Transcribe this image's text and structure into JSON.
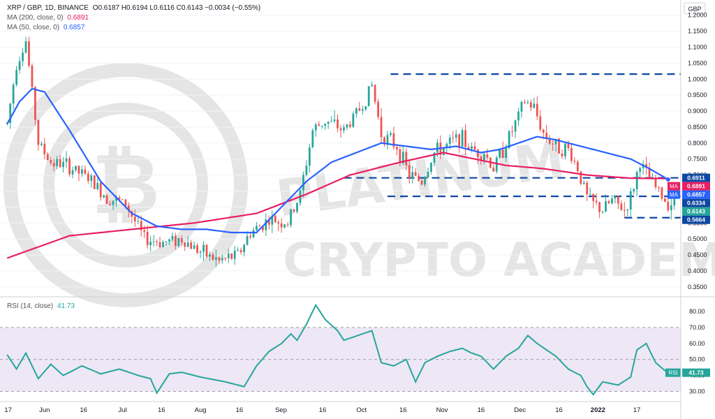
{
  "header": {
    "symbol": "XRP / GBP, 1D, BINANCE",
    "ohlc": "O0.6187 H0.6194 L0.6116 C0.6143 −0.0034 (−0.55%)",
    "ma200_label": "MA (200, close, 0)",
    "ma200_value": "0.6891",
    "ma50_label": "MA (50, close, 0)",
    "ma50_value": "0.6857"
  },
  "rsi_header": {
    "label": "RSI (14, close)",
    "value": "41.73"
  },
  "watermark": {
    "line1": "PLATINUM",
    "line2": "CRYPTO ACADEMY"
  },
  "colors": {
    "up": "#26a69a",
    "down": "#ef5350",
    "ma50": "#2962ff",
    "ma200": "#e91e63",
    "rsi": "#26a69a",
    "level": "#0d47a1",
    "rsi_band": "#ede7f6"
  },
  "chart_data": [
    {
      "type": "candlestick",
      "currency": "GBP",
      "ylim": [
        0.33,
        1.23
      ],
      "y_ticks": [
        1.2,
        1.15,
        1.1,
        1.05,
        1.0,
        0.95,
        0.9,
        0.85,
        0.8,
        0.75,
        0.7,
        0.65,
        0.6,
        0.55,
        0.5,
        0.45,
        0.4,
        0.35
      ],
      "x_ticks": [
        "17",
        "Jun",
        "16",
        "Jul",
        "16",
        "Aug",
        "16",
        "Sep",
        "16",
        "Oct",
        "16",
        "Nov",
        "16",
        "Dec",
        "16",
        "2022",
        "17"
      ],
      "price_anchors": [
        [
          0,
          0.86
        ],
        [
          3,
          1.05
        ],
        [
          6,
          1.12
        ],
        [
          10,
          0.8
        ],
        [
          14,
          0.74
        ],
        [
          19,
          0.73
        ],
        [
          26,
          0.69
        ],
        [
          32,
          0.63
        ],
        [
          38,
          0.61
        ],
        [
          44,
          0.5
        ],
        [
          50,
          0.49
        ],
        [
          56,
          0.5
        ],
        [
          62,
          0.46
        ],
        [
          68,
          0.43
        ],
        [
          74,
          0.45
        ],
        [
          78,
          0.52
        ],
        [
          84,
          0.56
        ],
        [
          90,
          0.55
        ],
        [
          94,
          0.64
        ],
        [
          98,
          0.84
        ],
        [
          102,
          0.87
        ],
        [
          108,
          0.84
        ],
        [
          114,
          0.92
        ],
        [
          117,
          0.98
        ],
        [
          120,
          0.83
        ],
        [
          125,
          0.79
        ],
        [
          129,
          0.7
        ],
        [
          133,
          0.68
        ],
        [
          137,
          0.77
        ],
        [
          141,
          0.79
        ],
        [
          145,
          0.82
        ],
        [
          149,
          0.78
        ],
        [
          153,
          0.77
        ],
        [
          156,
          0.72
        ],
        [
          160,
          0.8
        ],
        [
          163,
          0.86
        ],
        [
          166,
          0.93
        ],
        [
          169,
          0.91
        ],
        [
          172,
          0.83
        ],
        [
          176,
          0.79
        ],
        [
          180,
          0.78
        ],
        [
          183,
          0.72
        ],
        [
          186,
          0.63
        ],
        [
          188,
          0.61
        ],
        [
          191,
          0.59
        ],
        [
          194,
          0.62
        ],
        [
          198,
          0.59
        ],
        [
          200,
          0.63
        ],
        [
          203,
          0.74
        ],
        [
          205,
          0.7
        ],
        [
          208,
          0.66
        ],
        [
          211,
          0.62
        ],
        [
          214,
          0.61
        ]
      ],
      "ma50_anchors": [
        [
          0,
          0.86
        ],
        [
          4,
          0.93
        ],
        [
          8,
          0.97
        ],
        [
          12,
          0.96
        ],
        [
          20,
          0.84
        ],
        [
          30,
          0.68
        ],
        [
          40,
          0.58
        ],
        [
          48,
          0.54
        ],
        [
          56,
          0.53
        ],
        [
          64,
          0.53
        ],
        [
          72,
          0.52
        ],
        [
          80,
          0.52
        ],
        [
          88,
          0.6
        ],
        [
          96,
          0.68
        ],
        [
          104,
          0.74
        ],
        [
          112,
          0.77
        ],
        [
          120,
          0.8
        ],
        [
          128,
          0.79
        ],
        [
          136,
          0.78
        ],
        [
          144,
          0.79
        ],
        [
          152,
          0.77
        ],
        [
          158,
          0.78
        ],
        [
          164,
          0.8
        ],
        [
          170,
          0.82
        ],
        [
          176,
          0.81
        ],
        [
          184,
          0.79
        ],
        [
          192,
          0.77
        ],
        [
          200,
          0.75
        ],
        [
          206,
          0.72
        ],
        [
          212,
          0.686
        ]
      ],
      "ma200_anchors": [
        [
          0,
          0.44
        ],
        [
          20,
          0.51
        ],
        [
          40,
          0.53
        ],
        [
          60,
          0.55
        ],
        [
          80,
          0.58
        ],
        [
          96,
          0.64
        ],
        [
          110,
          0.7
        ],
        [
          126,
          0.74
        ],
        [
          140,
          0.77
        ],
        [
          150,
          0.75
        ],
        [
          160,
          0.73
        ],
        [
          172,
          0.72
        ],
        [
          186,
          0.7
        ],
        [
          200,
          0.69
        ],
        [
          212,
          0.689
        ]
      ],
      "levels": [
        {
          "value": 1.0156,
          "label": "1.0156",
          "style": "dashed"
        },
        {
          "value": 0.6911,
          "label": "0.6911",
          "style": "dashed"
        },
        {
          "value": 0.6334,
          "label": "0.6334",
          "style": "dashed"
        },
        {
          "value": 0.5664,
          "label": "0.5664",
          "style": "dashed"
        }
      ],
      "price_tags": [
        {
          "value": 0.6911,
          "label": "0.6911",
          "kind": "level"
        },
        {
          "value": 0.6891,
          "label": "0.6891",
          "kind": "ma200",
          "tag": "MA"
        },
        {
          "value": 0.6857,
          "label": "0.6857",
          "kind": "ma50",
          "tag": "MA"
        },
        {
          "value": 0.6334,
          "label": "0.6334",
          "kind": "level"
        },
        {
          "value": 0.6143,
          "label": "0.6143",
          "kind": "last"
        },
        {
          "value": 0.5664,
          "label": "0.5664",
          "kind": "level"
        }
      ]
    },
    {
      "type": "line",
      "series_name": "RSI",
      "ylim": [
        25,
        87
      ],
      "y_ticks": [
        80,
        70,
        60,
        50,
        40,
        30
      ],
      "band": [
        30,
        70
      ],
      "value": 41.73,
      "rsi_anchors": [
        [
          0,
          53
        ],
        [
          3,
          44
        ],
        [
          6,
          54
        ],
        [
          10,
          38
        ],
        [
          14,
          47
        ],
        [
          18,
          40
        ],
        [
          24,
          46
        ],
        [
          30,
          41
        ],
        [
          36,
          44
        ],
        [
          42,
          40
        ],
        [
          46,
          38
        ],
        [
          48,
          29
        ],
        [
          52,
          41
        ],
        [
          56,
          42
        ],
        [
          62,
          39
        ],
        [
          70,
          36
        ],
        [
          76,
          33
        ],
        [
          80,
          46
        ],
        [
          84,
          55
        ],
        [
          88,
          60
        ],
        [
          91,
          66
        ],
        [
          93,
          62
        ],
        [
          96,
          72
        ],
        [
          99,
          84
        ],
        [
          102,
          75
        ],
        [
          106,
          68
        ],
        [
          108,
          62
        ],
        [
          114,
          66
        ],
        [
          117,
          68
        ],
        [
          120,
          48
        ],
        [
          124,
          46
        ],
        [
          128,
          50
        ],
        [
          131,
          36
        ],
        [
          134,
          48
        ],
        [
          138,
          52
        ],
        [
          142,
          55
        ],
        [
          146,
          57
        ],
        [
          149,
          54
        ],
        [
          152,
          52
        ],
        [
          156,
          44
        ],
        [
          160,
          52
        ],
        [
          164,
          57
        ],
        [
          167,
          65
        ],
        [
          170,
          60
        ],
        [
          173,
          56
        ],
        [
          176,
          52
        ],
        [
          180,
          44
        ],
        [
          184,
          40
        ],
        [
          186,
          33
        ],
        [
          188,
          28
        ],
        [
          191,
          36
        ],
        [
          196,
          34
        ],
        [
          200,
          39
        ],
        [
          202,
          56
        ],
        [
          205,
          60
        ],
        [
          208,
          48
        ],
        [
          211,
          43
        ],
        [
          214,
          41.73
        ]
      ]
    }
  ]
}
